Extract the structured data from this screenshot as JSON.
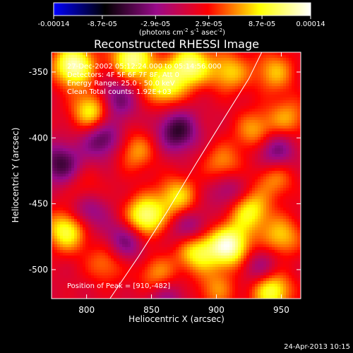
{
  "chart_data": {
    "type": "heatmap",
    "title": "Reconstructed RHESSI Image",
    "xlabel": "Heliocentric X (arcsec)",
    "ylabel": "Heliocentric Y (arcsec)",
    "xlim": [
      773,
      965
    ],
    "ylim": [
      -522,
      -335
    ],
    "x_ticks": [
      800,
      850,
      900,
      950
    ],
    "y_ticks": [
      -350,
      -400,
      -450,
      -500
    ],
    "colorbar": {
      "range": [
        -0.00014,
        0.00014
      ],
      "tick_values": [
        -0.00014,
        -8.7e-05,
        -2.9e-05,
        2.9e-05,
        8.7e-05,
        0.00014
      ],
      "tick_labels": [
        "-0.00014",
        "-8.7e-05",
        "-2.9e-05",
        "2.9e-05",
        "8.7e-05",
        "0.00014"
      ],
      "units_text": "(photons cm",
      "units_sup1": "-2",
      "units_mid": " s",
      "units_sup2": "-1",
      "units_end": " asec",
      "units_sup3": "-2",
      "units_close": ")",
      "colormap": [
        "#0000ff",
        "#000000",
        "#9a0a8a",
        "#ff0000",
        "#ffff00",
        "#ffffff"
      ]
    },
    "annotations": [
      "27-Dec-2002 05:12:24.000 to 05:14:56.000",
      "Detectors: 4F 5F 6F 7F 8F, Att 0",
      "Energy Range: 25.0 - 50.0 keV",
      "Clean     Total counts: 1.92E+03"
    ],
    "peak_label": "Position of Peak = [910,-482]",
    "peak": [
      910,
      -482
    ],
    "limb_curve": [
      [
        818,
        -522
      ],
      [
        840,
        -490
      ],
      [
        862,
        -456
      ],
      [
        884,
        -420
      ],
      [
        906,
        -385
      ],
      [
        925,
        -355
      ],
      [
        935,
        -335
      ]
    ],
    "blobs": [
      {
        "x": 790,
        "y": -345,
        "v": 1.0
      },
      {
        "x": 805,
        "y": -380,
        "v": 0.8
      },
      {
        "x": 835,
        "y": -340,
        "v": 0.9
      },
      {
        "x": 860,
        "y": -360,
        "v": 0.75
      },
      {
        "x": 880,
        "y": -345,
        "v": 0.85
      },
      {
        "x": 910,
        "y": -350,
        "v": 0.55
      },
      {
        "x": 945,
        "y": -350,
        "v": 0.5
      },
      {
        "x": 955,
        "y": -385,
        "v": 0.45
      },
      {
        "x": 838,
        "y": -410,
        "v": 0.45
      },
      {
        "x": 930,
        "y": -395,
        "v": 0.5
      },
      {
        "x": 905,
        "y": -420,
        "v": 0.45
      },
      {
        "x": 845,
        "y": -460,
        "v": 0.9
      },
      {
        "x": 870,
        "y": -445,
        "v": 0.6
      },
      {
        "x": 785,
        "y": -470,
        "v": 0.8
      },
      {
        "x": 885,
        "y": -485,
        "v": 0.8
      },
      {
        "x": 910,
        "y": -482,
        "v": 1.0
      },
      {
        "x": 925,
        "y": -455,
        "v": 0.7
      },
      {
        "x": 945,
        "y": -430,
        "v": 0.45
      },
      {
        "x": 950,
        "y": -475,
        "v": 0.55
      },
      {
        "x": 815,
        "y": -495,
        "v": 0.4
      },
      {
        "x": 855,
        "y": -505,
        "v": 0.5
      },
      {
        "x": 942,
        "y": -515,
        "v": 0.85
      },
      {
        "x": 900,
        "y": -515,
        "v": 0.4
      },
      {
        "x": 798,
        "y": -440,
        "v": 0.3
      },
      {
        "x": 812,
        "y": -400,
        "v": -0.6
      },
      {
        "x": 822,
        "y": -372,
        "v": -0.55
      },
      {
        "x": 780,
        "y": -420,
        "v": -0.6
      },
      {
        "x": 800,
        "y": -455,
        "v": -0.5
      },
      {
        "x": 830,
        "y": -478,
        "v": -0.5
      },
      {
        "x": 870,
        "y": -395,
        "v": -0.65
      },
      {
        "x": 880,
        "y": -470,
        "v": -0.5
      },
      {
        "x": 945,
        "y": -410,
        "v": -0.55
      },
      {
        "x": 935,
        "y": -500,
        "v": -0.45
      },
      {
        "x": 860,
        "y": -520,
        "v": -0.4
      },
      {
        "x": 910,
        "y": -440,
        "v": -0.4
      }
    ]
  },
  "footer": {
    "date": "24-Apr-2013 10:15"
  }
}
